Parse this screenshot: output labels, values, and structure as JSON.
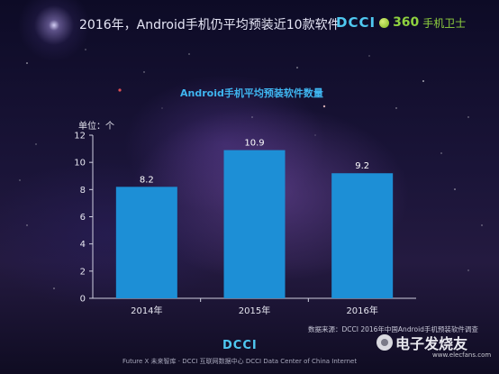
{
  "header": {
    "title": "2016年，Android手机仍平均预装近10款软件",
    "brand_dcci": "DCCI",
    "brand_360": "360",
    "brand_guard": "手机卫士"
  },
  "chart_data": {
    "type": "bar",
    "title": "Android手机平均预装软件数量",
    "unit_label": "单位：个",
    "categories": [
      "2014年",
      "2015年",
      "2016年"
    ],
    "values": [
      8.2,
      10.9,
      9.2
    ],
    "value_labels": [
      "8.2",
      "10.9",
      "9.2"
    ],
    "ylim": [
      0,
      12
    ],
    "yticks": [
      0,
      2,
      4,
      6,
      8,
      10,
      12
    ],
    "bar_color": "#1d8fd6",
    "grid": false,
    "legend": "none"
  },
  "footer": {
    "source": "数据来源：DCCI 2016年中国Android手机预装软件调查",
    "logo": "DCCI",
    "text": "Future X 未来智库 · DCCI 互联网数据中心 DCCI Data Center of China Internet"
  },
  "watermark": {
    "name": "电子发烧友",
    "site": "www.elecfans.com"
  }
}
